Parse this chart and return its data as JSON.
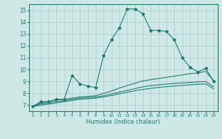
{
  "xlabel": "Humidex (Indice chaleur)",
  "background_color": "#cde8e5",
  "grid_color": "#aacccc",
  "line_color": "#1a7a6e",
  "x_values": [
    0,
    1,
    2,
    3,
    4,
    5,
    6,
    7,
    8,
    9,
    10,
    11,
    12,
    13,
    14,
    15,
    16,
    17,
    18,
    19,
    20,
    21,
    22,
    23
  ],
  "main_line": [
    6.9,
    7.3,
    7.3,
    7.5,
    7.5,
    9.5,
    8.8,
    8.6,
    8.5,
    11.2,
    12.5,
    13.5,
    15.1,
    15.1,
    14.7,
    13.3,
    13.3,
    13.2,
    12.5,
    11.0,
    10.2,
    9.8,
    10.1,
    9.0
  ],
  "line2": [
    6.9,
    7.2,
    7.3,
    7.45,
    7.5,
    7.6,
    7.7,
    7.75,
    7.8,
    8.0,
    8.2,
    8.45,
    8.65,
    8.85,
    9.05,
    9.15,
    9.25,
    9.35,
    9.45,
    9.55,
    9.65,
    9.72,
    9.85,
    9.05
  ],
  "line3": [
    6.9,
    7.1,
    7.2,
    7.3,
    7.4,
    7.5,
    7.6,
    7.65,
    7.7,
    7.8,
    7.95,
    8.1,
    8.25,
    8.4,
    8.55,
    8.65,
    8.72,
    8.78,
    8.83,
    8.88,
    8.92,
    8.96,
    9.0,
    8.55
  ],
  "line4": [
    6.9,
    7.0,
    7.1,
    7.2,
    7.3,
    7.4,
    7.5,
    7.55,
    7.6,
    7.7,
    7.82,
    7.96,
    8.1,
    8.22,
    8.33,
    8.42,
    8.5,
    8.56,
    8.62,
    8.67,
    8.72,
    8.76,
    8.8,
    8.38
  ],
  "ylim": [
    6.5,
    15.5
  ],
  "xlim": [
    -0.5,
    23.5
  ],
  "yticks": [
    7,
    8,
    9,
    10,
    11,
    12,
    13,
    14,
    15
  ],
  "xticks": [
    0,
    1,
    2,
    3,
    4,
    5,
    6,
    7,
    8,
    9,
    10,
    11,
    12,
    13,
    14,
    15,
    16,
    17,
    18,
    19,
    20,
    21,
    22,
    23
  ]
}
